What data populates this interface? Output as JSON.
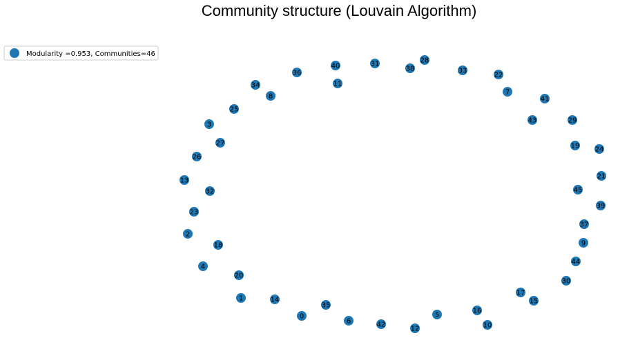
{
  "chart_data": {
    "type": "network",
    "title": "Community structure (Louvain Algorithm)",
    "legend": {
      "label": "Modularity =0.953, Communities=46",
      "placement": "top-left"
    },
    "colors": {
      "node": "#1f77b4"
    },
    "nodes": [
      {
        "id": "0"
      },
      {
        "id": "1"
      },
      {
        "id": "2"
      },
      {
        "id": "3"
      },
      {
        "id": "4"
      },
      {
        "id": "5"
      },
      {
        "id": "6"
      },
      {
        "id": "7"
      },
      {
        "id": "8"
      },
      {
        "id": "9"
      },
      {
        "id": "10"
      },
      {
        "id": "11"
      },
      {
        "id": "12"
      },
      {
        "id": "13"
      },
      {
        "id": "14"
      },
      {
        "id": "15"
      },
      {
        "id": "16"
      },
      {
        "id": "17"
      },
      {
        "id": "18"
      },
      {
        "id": "19"
      },
      {
        "id": "20"
      },
      {
        "id": "21"
      },
      {
        "id": "22"
      },
      {
        "id": "23"
      },
      {
        "id": "24"
      },
      {
        "id": "25"
      },
      {
        "id": "26"
      },
      {
        "id": "27"
      },
      {
        "id": "28"
      },
      {
        "id": "29"
      },
      {
        "id": "30"
      },
      {
        "id": "31"
      },
      {
        "id": "32"
      },
      {
        "id": "33"
      },
      {
        "id": "34"
      },
      {
        "id": "35"
      },
      {
        "id": "36"
      },
      {
        "id": "37"
      },
      {
        "id": "38"
      },
      {
        "id": "39"
      },
      {
        "id": "40"
      },
      {
        "id": "41"
      },
      {
        "id": "42"
      },
      {
        "id": "43"
      },
      {
        "id": "44"
      },
      {
        "id": "45"
      }
    ],
    "edges": []
  }
}
